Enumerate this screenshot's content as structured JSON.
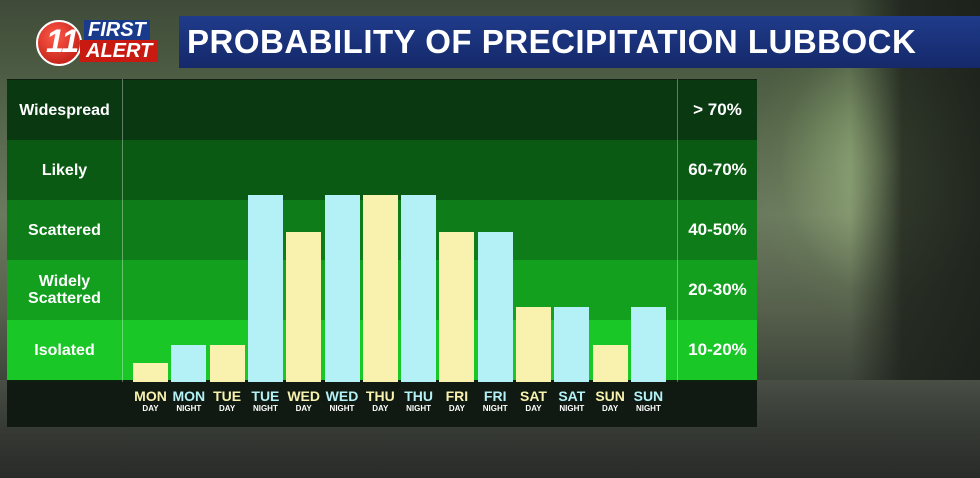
{
  "header": {
    "title": "PROBABILITY OF PRECIPITATION LUBBOCK"
  },
  "logo": {
    "number": "11",
    "first": "FIRST",
    "alert": "ALERT"
  },
  "colors": {
    "day": "#f8f2ae",
    "night": "#b4f1f6",
    "bands": [
      "#093811",
      "#0b5a14",
      "#0e7c18",
      "#12a01e",
      "#19c727"
    ]
  },
  "chart_data": {
    "type": "bar",
    "title": "PROBABILITY OF PRECIPITATION LUBBOCK",
    "categories": [
      {
        "day": "MON",
        "part": "DAY"
      },
      {
        "day": "MON",
        "part": "NIGHT"
      },
      {
        "day": "TUE",
        "part": "DAY"
      },
      {
        "day": "TUE",
        "part": "NIGHT"
      },
      {
        "day": "WED",
        "part": "DAY"
      },
      {
        "day": "WED",
        "part": "NIGHT"
      },
      {
        "day": "THU",
        "part": "DAY"
      },
      {
        "day": "THU",
        "part": "NIGHT"
      },
      {
        "day": "FRI",
        "part": "DAY"
      },
      {
        "day": "FRI",
        "part": "NIGHT"
      },
      {
        "day": "SAT",
        "part": "DAY"
      },
      {
        "day": "SAT",
        "part": "NIGHT"
      },
      {
        "day": "SUN",
        "part": "DAY"
      },
      {
        "day": "SUN",
        "part": "NIGHT"
      }
    ],
    "values": [
      5,
      10,
      10,
      50,
      40,
      50,
      50,
      50,
      40,
      40,
      20,
      20,
      10,
      20
    ],
    "ylim": [
      0,
      80
    ],
    "bands": [
      {
        "label": "Widespread",
        "range": "> 70%"
      },
      {
        "label": "Likely",
        "range": "60-70%"
      },
      {
        "label": "Scattered",
        "range": "40-50%"
      },
      {
        "label": "Widely Scattered",
        "range": "20-30%"
      },
      {
        "label": "Isolated",
        "range": "10-20%"
      }
    ]
  }
}
